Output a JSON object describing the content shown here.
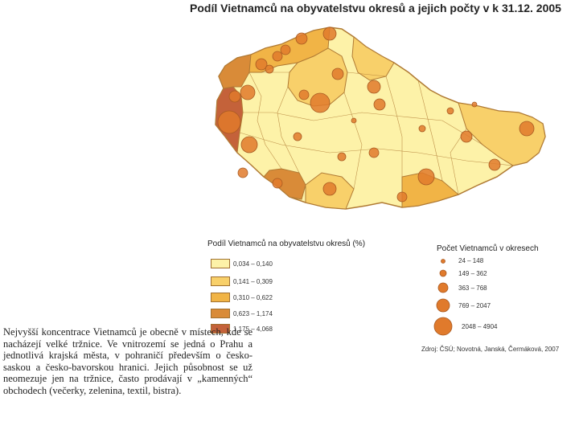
{
  "title": "Podíl Vietnamců na obyvatelstvu okresů a jejich počty v k 31.12. 2005",
  "colors": {
    "class1": "#fdf2a8",
    "class2": "#f8d06a",
    "class3": "#f1b446",
    "class4": "#d98b38",
    "class5": "#c4623a",
    "border": "#b07a34",
    "bubble": "#e07a2c",
    "bubble_edge": "#a85a22"
  },
  "legend_share": {
    "title": "Podíl Vietnamců na obyvatelstvu okresů (%)",
    "classes": [
      {
        "label": "0,034 – 0,140",
        "color": "#fdf2a8"
      },
      {
        "label": "0,141 – 0,309",
        "color": "#f8d06a"
      },
      {
        "label": "0,310 – 0,622",
        "color": "#f1b446"
      },
      {
        "label": "0,623 – 1,174",
        "color": "#d98b38"
      },
      {
        "label": "1,175 – 4,068",
        "color": "#c4623a"
      }
    ]
  },
  "legend_count": {
    "title": "Počet Vietnamců v okresech",
    "classes": [
      {
        "label": "24 – 148"
      },
      {
        "label": "149 – 362"
      },
      {
        "label": "363 – 768"
      },
      {
        "label": "769 – 2047"
      },
      {
        "label": "2048 – 4904"
      }
    ]
  },
  "source": "Zdroj: ČSÚ; Novotná, Janská, Čermáková, 2007",
  "caption": "Nejvyšší koncentrace Vietnamců je obecně v místech, kde se nacházejí velké tržnice. Ve vnitrozemí se jedná o Prahu a jednotlivá krajská města, v pohraničí především o česko-saskou a česko-bavorskou hranici. Jejich působnost se už neomezuje jen na tržnice, často prodávají v „kamenných“ obchodech (večerky, zelenina, textil, bistra)."
}
